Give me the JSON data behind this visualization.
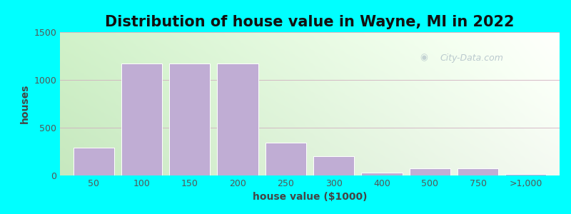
{
  "title": "Distribution of house value in Wayne, MI in 2022",
  "xlabel": "house value ($1000)",
  "ylabel": "houses",
  "background_outer": "#00FFFF",
  "bar_color": "#C0ADD4",
  "bar_edge_color": "#FFFFFF",
  "ylim": [
    0,
    1500
  ],
  "yticks": [
    0,
    500,
    1000,
    1500
  ],
  "categories": [
    "50",
    "100",
    "150",
    "200",
    "250",
    "300",
    "400",
    "500",
    "750",
    ">1,000"
  ],
  "values": [
    290,
    1175,
    1175,
    1175,
    340,
    200,
    30,
    75,
    75,
    18
  ],
  "title_fontsize": 15,
  "label_fontsize": 10,
  "tick_fontsize": 9,
  "watermark": "City-Data.com",
  "grad_left": "#C8E6C0",
  "grad_right": "#F0F5EE"
}
